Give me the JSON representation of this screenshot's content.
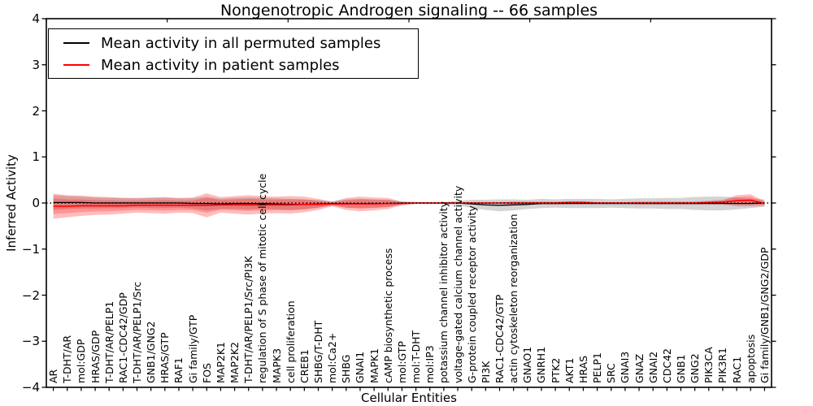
{
  "figure": {
    "background": "#ffffff"
  },
  "chart_data": {
    "type": "line",
    "title": "Nongenotropic Androgen signaling -- 66 samples",
    "xlabel": "Cellular Entities",
    "ylabel": "Inferred Activity",
    "ylim": [
      -4,
      4
    ],
    "grid": false,
    "legend_position": "upper left",
    "y_ticks": [
      {
        "v": 4,
        "label": "4"
      },
      {
        "v": 3,
        "label": "3"
      },
      {
        "v": 2,
        "label": "2"
      },
      {
        "v": 1,
        "label": "1"
      },
      {
        "v": 0,
        "label": "0"
      },
      {
        "v": -1,
        "label": "−1"
      },
      {
        "v": -2,
        "label": "−2"
      },
      {
        "v": -3,
        "label": "−3"
      },
      {
        "v": -4,
        "label": "−4"
      }
    ],
    "baseline": {
      "value": 0,
      "style": "dotted",
      "color": "#000000"
    },
    "categories": [
      "AR",
      "T-DHT/AR",
      "mol:GDP",
      "HRAS/GDP",
      "T-DHT/AR/PELP1",
      "RAC1-CDC42/GDP",
      "T-DHT/AR/PELP1/Src",
      "GNB1/GNG2",
      "HRAS/GTP",
      "RAF1",
      "Gi family/GTP",
      "FOS",
      "MAP2K1",
      "MAP2K2",
      "T-DHT/AR/PELP1/Src/PI3K",
      "regulation of S phase of mitotic cell cycle",
      "MAPK3",
      "cell proliferation",
      "CREB1",
      "SHBG/T-DHT",
      "mol:Ca2+",
      "SHBG",
      "GNAI1",
      "MAPK1",
      "cAMP biosynthetic process",
      "mol:GTP",
      "mol:T-DHT",
      "mol:IP3",
      "potassium channel inhibitor activity",
      "voltage-gated calcium channel activity",
      "G-protein coupled receptor activity",
      "PI3K",
      "RAC1-CDC42/GTP",
      "actin cytoskeleton reorganization",
      "GNAO1",
      "GNRH1",
      "PTK2",
      "AKT1",
      "HRAS",
      "PELP1",
      "SRC",
      "GNAI3",
      "GNAZ",
      "GNAI2",
      "CDC42",
      "GNB1",
      "GNG2",
      "PIK3CA",
      "PIK3R1",
      "RAC1",
      "apoptosis",
      "Gi family/GNB1/GNG2/GDP"
    ],
    "series": [
      {
        "name": "Mean activity in all permuted samples",
        "color": "#000000",
        "style": "solid",
        "values": [
          0.01,
          0.01,
          0.01,
          0.0,
          0.0,
          0.0,
          0.0,
          0.0,
          0.0,
          0.0,
          -0.01,
          -0.01,
          -0.02,
          -0.01,
          -0.01,
          -0.01,
          -0.02,
          -0.03,
          -0.03,
          -0.02,
          -0.01,
          -0.01,
          -0.01,
          -0.01,
          -0.01,
          0.0,
          0.0,
          0.0,
          0.0,
          0.0,
          -0.02,
          -0.04,
          -0.05,
          -0.04,
          -0.03,
          -0.01,
          -0.01,
          -0.01,
          -0.01,
          -0.01,
          -0.01,
          -0.01,
          -0.01,
          -0.01,
          -0.01,
          -0.01,
          -0.01,
          -0.01,
          -0.01,
          -0.01,
          -0.01,
          0.0
        ]
      },
      {
        "name": "Mean activity in patient samples",
        "color": "#ff0000",
        "style": "solid",
        "values": [
          -0.07,
          -0.07,
          -0.06,
          -0.06,
          -0.06,
          -0.06,
          -0.05,
          -0.05,
          -0.05,
          -0.05,
          -0.05,
          -0.05,
          -0.04,
          -0.04,
          -0.04,
          -0.04,
          -0.04,
          -0.04,
          -0.03,
          -0.03,
          -0.02,
          -0.02,
          -0.02,
          -0.02,
          -0.01,
          -0.01,
          0.0,
          0.0,
          0.0,
          0.0,
          0.0,
          0.0,
          0.0,
          0.0,
          0.0,
          0.0,
          0.0,
          0.01,
          0.01,
          0.0,
          0.0,
          0.0,
          0.0,
          0.0,
          0.0,
          0.0,
          0.0,
          0.01,
          0.02,
          0.05,
          0.06,
          -0.01
        ]
      }
    ],
    "bands": [
      {
        "name": "permuted samples ± std",
        "color": "#bdbdbd",
        "opacity": 0.65,
        "center_series": 0,
        "half_widths": [
          0.16,
          0.14,
          0.13,
          0.12,
          0.11,
          0.11,
          0.1,
          0.11,
          0.11,
          0.1,
          0.11,
          0.15,
          0.11,
          0.12,
          0.13,
          0.12,
          0.12,
          0.12,
          0.11,
          0.08,
          0.04,
          0.09,
          0.1,
          0.09,
          0.08,
          0.03,
          0.02,
          0.02,
          0.02,
          0.05,
          0.09,
          0.11,
          0.13,
          0.12,
          0.1,
          0.1,
          0.09,
          0.1,
          0.1,
          0.1,
          0.09,
          0.1,
          0.11,
          0.11,
          0.12,
          0.12,
          0.14,
          0.15,
          0.15,
          0.13,
          0.1,
          0.08
        ]
      },
      {
        "name": "patient samples ± std",
        "color": "#ff0000",
        "opacity": 0.26,
        "center_series": 1,
        "half_widths": [
          0.27,
          0.24,
          0.22,
          0.2,
          0.19,
          0.17,
          0.16,
          0.17,
          0.18,
          0.16,
          0.17,
          0.26,
          0.17,
          0.19,
          0.21,
          0.19,
          0.18,
          0.19,
          0.17,
          0.12,
          0.05,
          0.13,
          0.16,
          0.14,
          0.12,
          0.04,
          0.02,
          0.02,
          0.02,
          0.02,
          0.02,
          0.02,
          0.02,
          0.03,
          0.03,
          0.03,
          0.03,
          0.03,
          0.03,
          0.02,
          0.02,
          0.02,
          0.03,
          0.03,
          0.03,
          0.03,
          0.03,
          0.04,
          0.05,
          0.12,
          0.13,
          0.05
        ]
      }
    ]
  },
  "legend": {
    "entries": [
      {
        "label": "Mean activity in all permuted samples",
        "color": "#000000"
      },
      {
        "label": "Mean activity in patient samples",
        "color": "#ff0000"
      }
    ]
  }
}
